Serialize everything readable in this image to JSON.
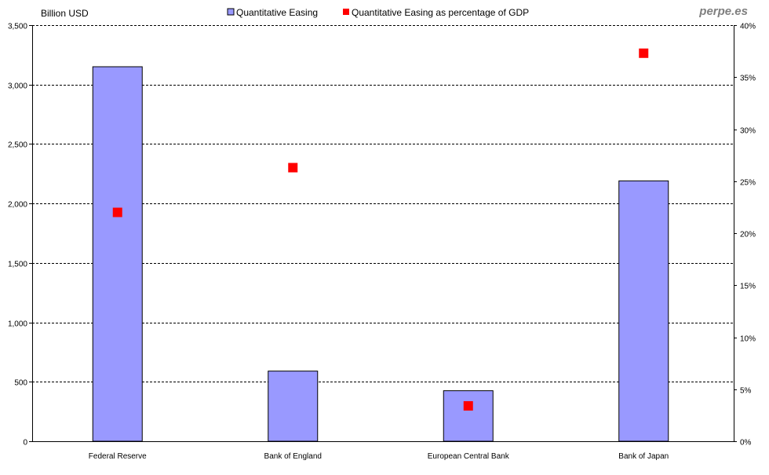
{
  "watermark": "perpe.es",
  "chart_data": {
    "type": "bar",
    "categories": [
      "Federal Reserve",
      "Bank of England",
      "European Central Bank",
      "Bank of Japan"
    ],
    "series": [
      {
        "name": "Quantitative Easing",
        "kind": "bar",
        "axis": "left",
        "values": [
          3150,
          590,
          425,
          2190
        ]
      },
      {
        "name": "Quantitative Easing as percentage of GDP",
        "kind": "marker",
        "axis": "right",
        "values": [
          22.0,
          26.3,
          3.4,
          37.3
        ]
      }
    ],
    "ylabel": "Billion USD",
    "ylim": [
      0,
      3500
    ],
    "yticks": [
      "0",
      "500",
      "1,000",
      "1,500",
      "2,000",
      "2,500",
      "3,000",
      "3,500"
    ],
    "y2lim": [
      0,
      40
    ],
    "y2ticks": [
      "0%",
      "5%",
      "10%",
      "15%",
      "20%",
      "25%",
      "30%",
      "35%",
      "40%"
    ],
    "grid": true,
    "legend_position": "top-center",
    "colors": {
      "bar": "#9999ff",
      "marker": "#ff0000",
      "grid": "#000000"
    }
  }
}
